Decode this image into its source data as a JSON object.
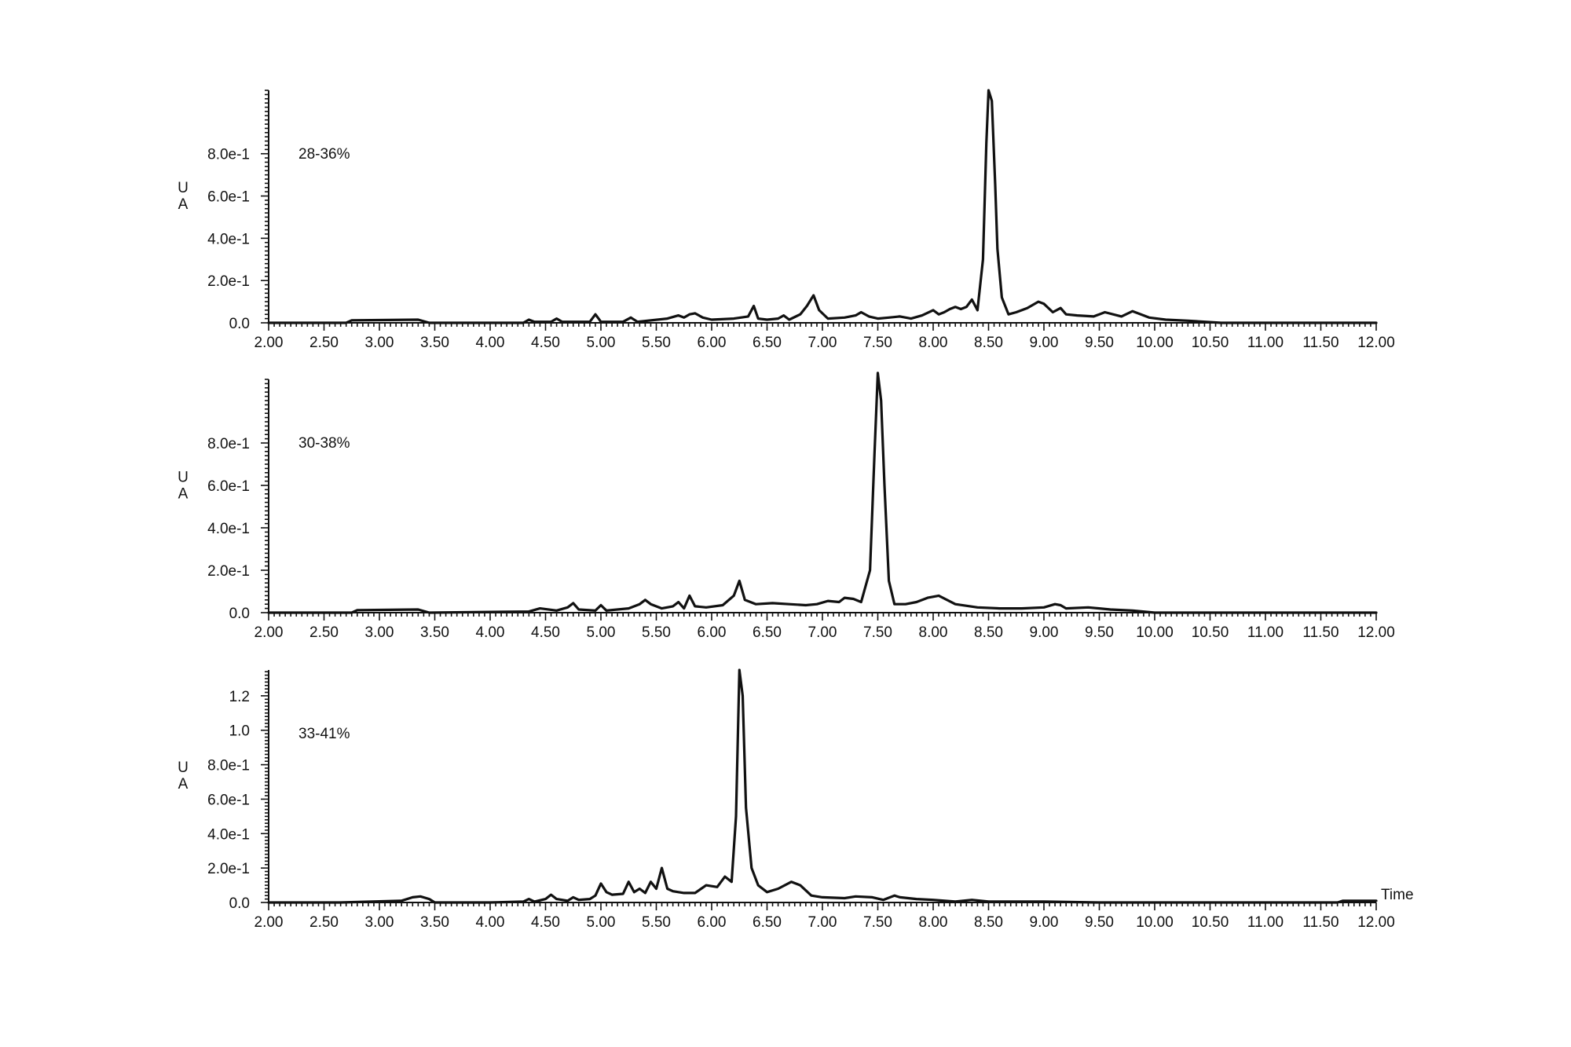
{
  "chart_data": [
    {
      "type": "line",
      "panel_label": "28-36%",
      "ylabel": "UA",
      "xlabel": "",
      "xlim": [
        2.0,
        12.0
      ],
      "ylim": [
        0.0,
        1.1
      ],
      "xticks": [
        "2.00",
        "2.50",
        "3.00",
        "3.50",
        "4.00",
        "4.50",
        "5.00",
        "5.50",
        "6.00",
        "6.50",
        "7.00",
        "7.50",
        "8.00",
        "8.50",
        "9.00",
        "9.50",
        "10.00",
        "10.50",
        "11.00",
        "11.50",
        "12.00"
      ],
      "yticks": [
        {
          "value": 0.0,
          "label": "0.0"
        },
        {
          "value": 0.2,
          "label": "2.0e-1"
        },
        {
          "value": 0.4,
          "label": "4.0e-1"
        },
        {
          "value": 0.6,
          "label": "6.0e-1"
        },
        {
          "value": 0.8,
          "label": "8.0e-1"
        }
      ],
      "series": [
        {
          "x": [
            2.0,
            2.7,
            2.75,
            3.35,
            3.45,
            4.3,
            4.35,
            4.4,
            4.55,
            4.6,
            4.65,
            4.9,
            4.95,
            5.0,
            5.2,
            5.27,
            5.33,
            5.6,
            5.7,
            5.75,
            5.8,
            5.85,
            5.92,
            6.0,
            6.2,
            6.33,
            6.38,
            6.42,
            6.5,
            6.6,
            6.65,
            6.7,
            6.8,
            6.86,
            6.92,
            6.97,
            7.05,
            7.2,
            7.3,
            7.35,
            7.42,
            7.5,
            7.6,
            7.7,
            7.8,
            7.9,
            8.0,
            8.05,
            8.1,
            8.15,
            8.2,
            8.25,
            8.3,
            8.35,
            8.4,
            8.45,
            8.48,
            8.5,
            8.53,
            8.56,
            8.58,
            8.62,
            8.68,
            8.75,
            8.85,
            8.95,
            9.0,
            9.08,
            9.15,
            9.2,
            9.3,
            9.45,
            9.55,
            9.7,
            9.8,
            9.85,
            9.95,
            10.1,
            10.3,
            10.6,
            11.2,
            12.0
          ],
          "y": [
            0.0,
            0.0,
            0.012,
            0.015,
            0.0,
            0.0,
            0.015,
            0.005,
            0.005,
            0.02,
            0.005,
            0.005,
            0.04,
            0.005,
            0.005,
            0.025,
            0.005,
            0.02,
            0.035,
            0.025,
            0.04,
            0.045,
            0.025,
            0.015,
            0.02,
            0.03,
            0.08,
            0.02,
            0.015,
            0.02,
            0.035,
            0.015,
            0.04,
            0.08,
            0.13,
            0.06,
            0.02,
            0.025,
            0.035,
            0.05,
            0.03,
            0.02,
            0.025,
            0.03,
            0.02,
            0.035,
            0.06,
            0.04,
            0.05,
            0.065,
            0.075,
            0.065,
            0.075,
            0.11,
            0.06,
            0.3,
            0.85,
            1.1,
            1.05,
            0.65,
            0.35,
            0.12,
            0.04,
            0.05,
            0.07,
            0.1,
            0.09,
            0.05,
            0.07,
            0.04,
            0.035,
            0.03,
            0.05,
            0.03,
            0.055,
            0.045,
            0.025,
            0.015,
            0.01,
            0.0,
            0.0,
            0.0
          ]
        }
      ]
    },
    {
      "type": "line",
      "panel_label": "30-38%",
      "ylabel": "UA",
      "xlabel": "",
      "xlim": [
        2.0,
        12.0
      ],
      "ylim": [
        0.0,
        1.1
      ],
      "xticks": [
        "2.00",
        "2.50",
        "3.00",
        "3.50",
        "4.00",
        "4.50",
        "5.00",
        "5.50",
        "6.00",
        "6.50",
        "7.00",
        "7.50",
        "8.00",
        "8.50",
        "9.00",
        "9.50",
        "10.00",
        "10.50",
        "11.00",
        "11.50",
        "12.00"
      ],
      "yticks": [
        {
          "value": 0.0,
          "label": "0.0"
        },
        {
          "value": 0.2,
          "label": "2.0e-1"
        },
        {
          "value": 0.4,
          "label": "4.0e-1"
        },
        {
          "value": 0.6,
          "label": "6.0e-1"
        },
        {
          "value": 0.8,
          "label": "8.0e-1"
        }
      ],
      "series": [
        {
          "x": [
            2.0,
            2.75,
            2.8,
            3.35,
            3.45,
            4.35,
            4.45,
            4.6,
            4.7,
            4.75,
            4.8,
            4.95,
            5.0,
            5.05,
            5.25,
            5.35,
            5.4,
            5.45,
            5.55,
            5.65,
            5.7,
            5.75,
            5.8,
            5.85,
            5.95,
            6.1,
            6.2,
            6.25,
            6.3,
            6.4,
            6.55,
            6.7,
            6.85,
            6.95,
            7.05,
            7.15,
            7.2,
            7.28,
            7.35,
            7.43,
            7.47,
            7.5,
            7.53,
            7.56,
            7.6,
            7.65,
            7.75,
            7.85,
            7.95,
            8.05,
            8.2,
            8.4,
            8.6,
            8.8,
            9.0,
            9.1,
            9.15,
            9.2,
            9.4,
            9.6,
            9.8,
            10.0,
            12.0
          ],
          "y": [
            0.0,
            0.0,
            0.012,
            0.015,
            0.0,
            0.005,
            0.02,
            0.01,
            0.025,
            0.045,
            0.015,
            0.01,
            0.035,
            0.01,
            0.02,
            0.04,
            0.06,
            0.04,
            0.02,
            0.03,
            0.05,
            0.02,
            0.08,
            0.03,
            0.025,
            0.035,
            0.08,
            0.15,
            0.06,
            0.04,
            0.045,
            0.04,
            0.035,
            0.04,
            0.055,
            0.05,
            0.07,
            0.065,
            0.05,
            0.2,
            0.75,
            1.13,
            1.0,
            0.6,
            0.15,
            0.04,
            0.04,
            0.05,
            0.07,
            0.08,
            0.04,
            0.025,
            0.02,
            0.02,
            0.025,
            0.04,
            0.035,
            0.02,
            0.025,
            0.015,
            0.01,
            0.0,
            0.0
          ]
        }
      ]
    },
    {
      "type": "line",
      "panel_label": "33-41%",
      "ylabel": "UA",
      "xlabel": "Time",
      "xlim": [
        2.0,
        12.0
      ],
      "ylim": [
        0.0,
        1.35
      ],
      "xticks": [
        "2.00",
        "2.50",
        "3.00",
        "3.50",
        "4.00",
        "4.50",
        "5.00",
        "5.50",
        "6.00",
        "6.50",
        "7.00",
        "7.50",
        "8.00",
        "8.50",
        "9.00",
        "9.50",
        "10.00",
        "10.50",
        "11.00",
        "11.50",
        "12.00"
      ],
      "yticks": [
        {
          "value": 0.0,
          "label": "0.0"
        },
        {
          "value": 0.2,
          "label": "2.0e-1"
        },
        {
          "value": 0.4,
          "label": "4.0e-1"
        },
        {
          "value": 0.6,
          "label": "6.0e-1"
        },
        {
          "value": 0.8,
          "label": "8.0e-1"
        },
        {
          "value": 1.0,
          "label": "1.0"
        },
        {
          "value": 1.2,
          "label": "1.2"
        }
      ],
      "series": [
        {
          "x": [
            2.0,
            2.65,
            3.2,
            3.3,
            3.37,
            3.45,
            3.5,
            4.0,
            4.3,
            4.35,
            4.4,
            4.5,
            4.55,
            4.6,
            4.7,
            4.75,
            4.8,
            4.9,
            4.95,
            5.0,
            5.05,
            5.1,
            5.2,
            5.25,
            5.3,
            5.35,
            5.4,
            5.45,
            5.5,
            5.55,
            5.6,
            5.65,
            5.75,
            5.85,
            5.95,
            6.05,
            6.12,
            6.18,
            6.22,
            6.25,
            6.28,
            6.31,
            6.36,
            6.42,
            6.5,
            6.6,
            6.72,
            6.8,
            6.9,
            7.0,
            7.2,
            7.3,
            7.45,
            7.55,
            7.65,
            7.7,
            7.85,
            8.0,
            8.2,
            8.35,
            8.5,
            9.0,
            9.5,
            10.0,
            11.0,
            11.65,
            11.7,
            12.0
          ],
          "y": [
            0.0,
            0.0,
            0.01,
            0.03,
            0.035,
            0.02,
            0.0,
            0.0,
            0.005,
            0.02,
            0.005,
            0.02,
            0.045,
            0.02,
            0.01,
            0.03,
            0.015,
            0.02,
            0.04,
            0.11,
            0.06,
            0.045,
            0.05,
            0.12,
            0.06,
            0.08,
            0.055,
            0.12,
            0.08,
            0.2,
            0.08,
            0.065,
            0.055,
            0.055,
            0.1,
            0.09,
            0.15,
            0.12,
            0.5,
            1.35,
            1.2,
            0.55,
            0.2,
            0.1,
            0.06,
            0.08,
            0.12,
            0.1,
            0.04,
            0.03,
            0.025,
            0.035,
            0.03,
            0.015,
            0.04,
            0.03,
            0.02,
            0.015,
            0.005,
            0.015,
            0.005,
            0.005,
            0.0,
            0.0,
            0.0,
            0.0,
            0.01,
            0.01
          ]
        }
      ]
    }
  ]
}
